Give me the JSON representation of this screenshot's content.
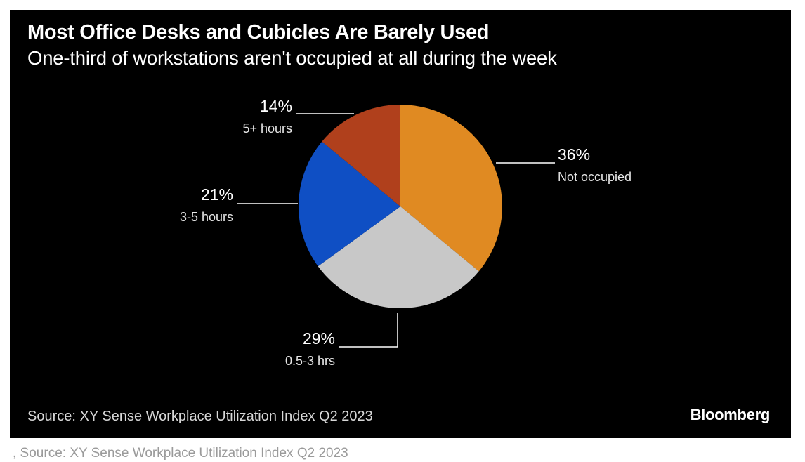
{
  "chart_data": {
    "type": "pie",
    "title": "Most Office Desks and Cubicles Are Barely Used",
    "subtitle": "One-third of workstations aren't occupied at all during the week",
    "slices": [
      {
        "label": "Not occupied",
        "value": 36,
        "value_label": "36%",
        "color": "#E08A22"
      },
      {
        "label": "0.5-3 hrs",
        "value": 29,
        "value_label": "29%",
        "color": "#C8C8C8"
      },
      {
        "label": "3-5 hours",
        "value": 21,
        "value_label": "21%",
        "color": "#0F4FC4"
      },
      {
        "label": "5+ hours",
        "value": 14,
        "value_label": "14%",
        "color": "#B0401C"
      }
    ],
    "legend": "none"
  },
  "footer": {
    "source": "Source: XY Sense Workplace Utilization Index Q2 2023",
    "brand": "Bloomberg"
  },
  "caption": ", Source: XY Sense Workplace Utilization Index Q2 2023"
}
